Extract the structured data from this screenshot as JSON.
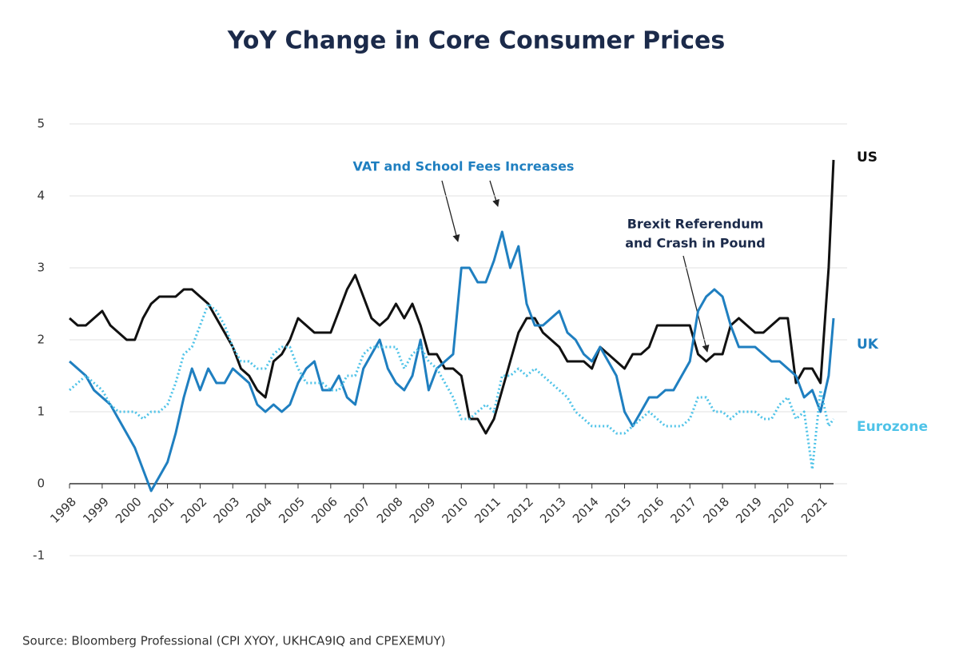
{
  "chart_data": {
    "type": "line",
    "title": "YoY Change in Core Consumer Prices",
    "source": "Source: Bloomberg Professional (CPI XYOY, UKHCA9IQ and CPEXEMUY)",
    "annotations": [
      "VAT and School Fees Increases",
      "Brexit Referendum",
      "and Crash in Pound"
    ],
    "x": [
      1998,
      1998.25,
      1998.5,
      1998.75,
      1999,
      1999.25,
      1999.5,
      1999.75,
      2000,
      2000.25,
      2000.5,
      2000.75,
      2001,
      2001.25,
      2001.5,
      2001.75,
      2002,
      2002.25,
      2002.5,
      2002.75,
      2003,
      2003.25,
      2003.5,
      2003.75,
      2004,
      2004.25,
      2004.5,
      2004.75,
      2005,
      2005.25,
      2005.5,
      2005.75,
      2006,
      2006.25,
      2006.5,
      2006.75,
      2007,
      2007.25,
      2007.5,
      2007.75,
      2008,
      2008.25,
      2008.5,
      2008.75,
      2009,
      2009.25,
      2009.5,
      2009.75,
      2010,
      2010.25,
      2010.5,
      2010.75,
      2011,
      2011.25,
      2011.5,
      2011.75,
      2012,
      2012.25,
      2012.5,
      2012.75,
      2013,
      2013.25,
      2013.5,
      2013.75,
      2014,
      2014.25,
      2014.5,
      2014.75,
      2015,
      2015.25,
      2015.5,
      2015.75,
      2016,
      2016.25,
      2016.5,
      2016.75,
      2017,
      2017.25,
      2017.5,
      2017.75,
      2018,
      2018.25,
      2018.5,
      2018.75,
      2019,
      2019.25,
      2019.5,
      2019.75,
      2020,
      2020.25,
      2020.5,
      2020.75,
      2021,
      2021.25,
      2021.4
    ],
    "series": [
      {
        "name": "US",
        "color": "#111111",
        "style": "solid",
        "values": [
          2.3,
          2.2,
          2.2,
          2.3,
          2.4,
          2.2,
          2.1,
          2.0,
          2.0,
          2.3,
          2.5,
          2.6,
          2.6,
          2.6,
          2.7,
          2.7,
          2.6,
          2.5,
          2.3,
          2.1,
          1.9,
          1.6,
          1.5,
          1.3,
          1.2,
          1.7,
          1.8,
          2.0,
          2.3,
          2.2,
          2.1,
          2.1,
          2.1,
          2.4,
          2.7,
          2.9,
          2.6,
          2.3,
          2.2,
          2.3,
          2.5,
          2.3,
          2.5,
          2.2,
          1.8,
          1.8,
          1.6,
          1.6,
          1.5,
          0.9,
          0.9,
          0.7,
          0.9,
          1.3,
          1.7,
          2.1,
          2.3,
          2.3,
          2.1,
          2.0,
          1.9,
          1.7,
          1.7,
          1.7,
          1.6,
          1.9,
          1.8,
          1.7,
          1.6,
          1.8,
          1.8,
          1.9,
          2.2,
          2.2,
          2.2,
          2.2,
          2.2,
          1.8,
          1.7,
          1.8,
          1.8,
          2.2,
          2.3,
          2.2,
          2.1,
          2.1,
          2.2,
          2.3,
          2.3,
          1.4,
          1.6,
          1.6,
          1.4,
          3.0,
          4.5
        ]
      },
      {
        "name": "UK",
        "color": "#1f7fc0",
        "style": "solid",
        "values": [
          1.7,
          1.6,
          1.5,
          1.3,
          1.2,
          1.1,
          0.9,
          0.7,
          0.5,
          0.2,
          -0.1,
          0.1,
          0.3,
          0.7,
          1.2,
          1.6,
          1.3,
          1.6,
          1.4,
          1.4,
          1.6,
          1.5,
          1.4,
          1.1,
          1.0,
          1.1,
          1.0,
          1.1,
          1.4,
          1.6,
          1.7,
          1.3,
          1.3,
          1.5,
          1.2,
          1.1,
          1.6,
          1.8,
          2.0,
          1.6,
          1.4,
          1.3,
          1.5,
          2.0,
          1.3,
          1.6,
          1.7,
          1.8,
          3.0,
          3.0,
          2.8,
          2.8,
          3.1,
          3.5,
          3.0,
          3.3,
          2.5,
          2.2,
          2.2,
          2.3,
          2.4,
          2.1,
          2.0,
          1.8,
          1.7,
          1.9,
          1.7,
          1.5,
          1.0,
          0.8,
          1.0,
          1.2,
          1.2,
          1.3,
          1.3,
          1.5,
          1.7,
          2.4,
          2.6,
          2.7,
          2.6,
          2.2,
          1.9,
          1.9,
          1.9,
          1.8,
          1.7,
          1.7,
          1.6,
          1.5,
          1.2,
          1.3,
          1.0,
          1.5,
          2.3
        ]
      },
      {
        "name": "Eurozone",
        "color": "#4fc3e8",
        "style": "dotted",
        "values": [
          1.3,
          1.4,
          1.5,
          1.4,
          1.3,
          1.1,
          1.0,
          1.0,
          1.0,
          0.9,
          1.0,
          1.0,
          1.1,
          1.4,
          1.8,
          1.9,
          2.2,
          2.5,
          2.4,
          2.2,
          1.9,
          1.7,
          1.7,
          1.6,
          1.6,
          1.8,
          1.9,
          1.9,
          1.6,
          1.4,
          1.4,
          1.4,
          1.3,
          1.3,
          1.5,
          1.5,
          1.8,
          1.9,
          1.9,
          1.9,
          1.9,
          1.6,
          1.8,
          1.9,
          1.7,
          1.6,
          1.4,
          1.2,
          0.9,
          0.9,
          1.0,
          1.1,
          1.0,
          1.5,
          1.5,
          1.6,
          1.5,
          1.6,
          1.5,
          1.4,
          1.3,
          1.2,
          1.0,
          0.9,
          0.8,
          0.8,
          0.8,
          0.7,
          0.7,
          0.8,
          0.9,
          1.0,
          0.9,
          0.8,
          0.8,
          0.8,
          0.9,
          1.2,
          1.2,
          1.0,
          1.0,
          0.9,
          1.0,
          1.0,
          1.0,
          0.9,
          0.9,
          1.1,
          1.2,
          0.9,
          1.0,
          0.2,
          1.3,
          0.8,
          0.9
        ]
      }
    ],
    "xlim": [
      1998,
      2021.4
    ],
    "xticks": [
      1998,
      1999,
      2000,
      2001,
      2002,
      2003,
      2004,
      2005,
      2006,
      2007,
      2008,
      2009,
      2010,
      2011,
      2012,
      2013,
      2014,
      2015,
      2016,
      2017,
      2018,
      2019,
      2020,
      2021
    ],
    "ylim": [
      -1,
      5
    ],
    "yticks": [
      -1,
      0,
      1,
      2,
      3,
      4,
      5
    ],
    "grid": true
  }
}
